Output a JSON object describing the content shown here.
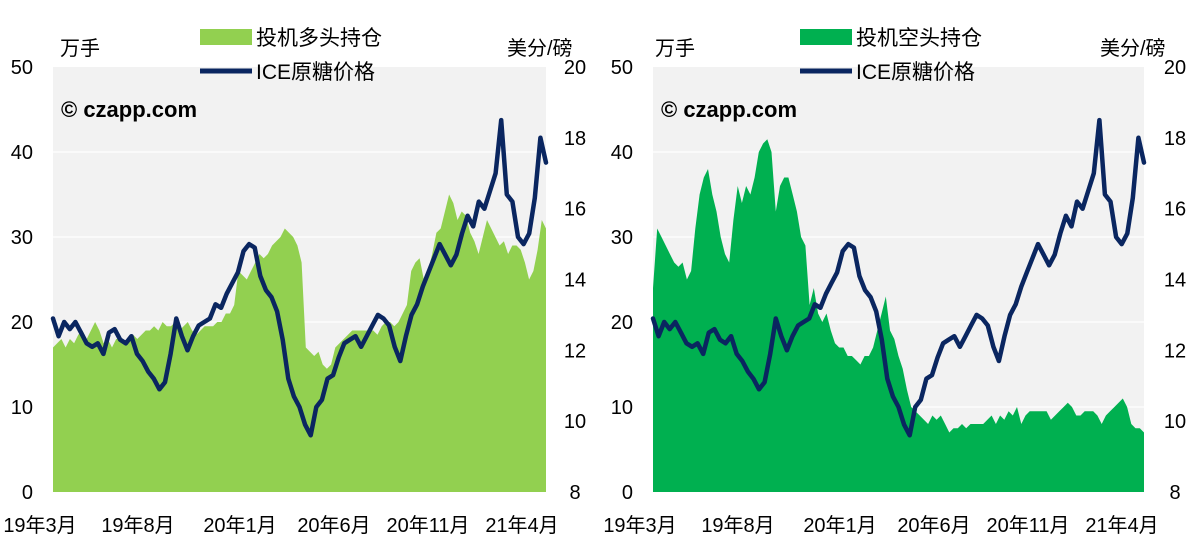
{
  "chart_data": [
    {
      "type": "area+line",
      "title": "",
      "watermark": "© czapp.com",
      "left_axis": {
        "unit_label": "万手",
        "range": [
          0,
          50
        ],
        "ticks": [
          "0",
          "10",
          "20",
          "30",
          "40",
          "50"
        ]
      },
      "right_axis": {
        "unit_label": "美分/磅",
        "range": [
          8,
          20
        ],
        "ticks": [
          "8",
          "10",
          "12",
          "14",
          "16",
          "18",
          "20"
        ]
      },
      "x_tick_labels": [
        "19年3月",
        "19年8月",
        "20年1月",
        "20年6月",
        "20年11月",
        "21年4月"
      ],
      "legend": [
        "投机多头持仓",
        "ICE原糖价格"
      ],
      "colors": {
        "area": "#92d050",
        "line": "#0a2660",
        "plot_bg": "#f2f2f2"
      },
      "series": [
        {
          "name": "投机多头持仓",
          "axis": "left",
          "values": [
            17,
            17.5,
            18,
            17,
            18,
            17.5,
            18.5,
            19,
            18,
            19,
            20,
            19,
            17.5,
            18,
            17,
            18,
            18,
            17.5,
            18,
            18.5,
            18,
            18.5,
            19,
            19,
            19.5,
            19,
            20,
            19.5,
            19.5,
            20,
            19,
            19.5,
            20,
            19,
            18.5,
            19,
            19.5,
            19.5,
            19.5,
            20,
            20,
            21,
            21,
            22,
            26,
            25.5,
            25,
            26,
            27,
            28,
            27.5,
            28,
            29,
            29.5,
            30,
            31,
            30.5,
            30,
            29,
            27,
            17,
            16.5,
            16,
            16.5,
            15,
            14.5,
            15,
            17,
            17.5,
            18,
            18.5,
            19,
            19,
            19,
            19,
            19,
            19,
            18.5,
            19.5,
            20,
            20,
            19.5,
            20,
            21,
            22,
            26,
            27,
            27.5,
            25,
            26,
            28,
            30.5,
            31,
            33,
            35,
            34,
            32,
            33,
            32.5,
            30.5,
            29.5,
            28,
            30,
            32,
            31,
            30,
            29,
            29.5,
            28,
            29,
            29,
            28.5,
            27,
            25,
            26,
            28.5,
            32,
            31
          ],
          "step_weeks": 1
        },
        {
          "name": "ICE原糖价格",
          "axis": "right",
          "values": [
            12.9,
            12.4,
            12.8,
            12.6,
            12.8,
            12.5,
            12.2,
            12.1,
            12.2,
            11.9,
            12.5,
            12.6,
            12.3,
            12.2,
            12.4,
            11.9,
            11.7,
            11.4,
            11.2,
            10.9,
            11.1,
            11.9,
            12.9,
            12.4,
            12.0,
            12.4,
            12.7,
            12.8,
            12.9,
            13.3,
            13.2,
            13.6,
            13.9,
            14.2,
            14.8,
            15.0,
            14.9,
            14.1,
            13.7,
            13.5,
            13.1,
            12.3,
            11.2,
            10.7,
            10.4,
            9.9,
            9.6,
            10.4,
            10.6,
            11.2,
            11.3,
            11.8,
            12.2,
            12.3,
            12.4,
            12.1,
            12.4,
            12.7,
            13.0,
            12.9,
            12.7,
            12.1,
            11.7,
            12.4,
            13.0,
            13.3,
            13.8,
            14.2,
            14.6,
            15.0,
            14.7,
            14.4,
            14.7,
            15.3,
            15.8,
            15.5,
            16.2,
            16.0,
            16.5,
            17.0,
            18.5,
            16.4,
            16.2,
            15.2,
            15.0,
            15.3,
            16.3,
            18.0,
            17.3
          ]
        }
      ]
    },
    {
      "type": "area+line",
      "title": "",
      "watermark": "© czapp.com",
      "left_axis": {
        "unit_label": "万手",
        "range": [
          0,
          50
        ],
        "ticks": [
          "0",
          "10",
          "20",
          "30",
          "40",
          "50"
        ]
      },
      "right_axis": {
        "unit_label": "美分/磅",
        "range": [
          8,
          20
        ],
        "ticks": [
          "8",
          "10",
          "12",
          "14",
          "16",
          "18",
          "20"
        ]
      },
      "x_tick_labels": [
        "19年3月",
        "19年8月",
        "20年1月",
        "20年6月",
        "20年11月",
        "21年4月"
      ],
      "legend": [
        "投机空头持仓",
        "ICE原糖价格"
      ],
      "colors": {
        "area": "#00b050",
        "line": "#0a2660",
        "plot_bg": "#f2f2f2"
      },
      "series": [
        {
          "name": "投机空头持仓",
          "axis": "left",
          "values": [
            24,
            31,
            30,
            29,
            28,
            27,
            26.5,
            27,
            25,
            26,
            31,
            35,
            37,
            38,
            35,
            33,
            30,
            28,
            27,
            32,
            36,
            34,
            36,
            35,
            37,
            40,
            41,
            41.5,
            40,
            33,
            36,
            37,
            37,
            35,
            33,
            30,
            29,
            22,
            24,
            21,
            20,
            21,
            19,
            17.5,
            17,
            17,
            16,
            16,
            15.5,
            15,
            16,
            16,
            17,
            19,
            21,
            23,
            19,
            18,
            16,
            14.5,
            12,
            10,
            9.5,
            9,
            8.5,
            8,
            9,
            8.5,
            9,
            8,
            7,
            7.5,
            7.5,
            8,
            7.5,
            8,
            8,
            8,
            8,
            8.5,
            9,
            8,
            9,
            8.5,
            9.5,
            9,
            10,
            8,
            9,
            9.5,
            9.5,
            9.5,
            9.5,
            9.5,
            8.5,
            9,
            9.5,
            10,
            10.5,
            10,
            9,
            9,
            9.5,
            9.5,
            9.5,
            9,
            8,
            9,
            9.5,
            10,
            10.5,
            11,
            10,
            8,
            7.5,
            7.5,
            7
          ],
          "step_weeks": 1
        },
        {
          "name": "ICE原糖价格",
          "axis": "right",
          "values": [
            12.9,
            12.4,
            12.8,
            12.6,
            12.8,
            12.5,
            12.2,
            12.1,
            12.2,
            11.9,
            12.5,
            12.6,
            12.3,
            12.2,
            12.4,
            11.9,
            11.7,
            11.4,
            11.2,
            10.9,
            11.1,
            11.9,
            12.9,
            12.4,
            12.0,
            12.4,
            12.7,
            12.8,
            12.9,
            13.3,
            13.2,
            13.6,
            13.9,
            14.2,
            14.8,
            15.0,
            14.9,
            14.1,
            13.7,
            13.5,
            13.1,
            12.3,
            11.2,
            10.7,
            10.4,
            9.9,
            9.6,
            10.4,
            10.6,
            11.2,
            11.3,
            11.8,
            12.2,
            12.3,
            12.4,
            12.1,
            12.4,
            12.7,
            13.0,
            12.9,
            12.7,
            12.1,
            11.7,
            12.4,
            13.0,
            13.3,
            13.8,
            14.2,
            14.6,
            15.0,
            14.7,
            14.4,
            14.7,
            15.3,
            15.8,
            15.5,
            16.2,
            16.0,
            16.5,
            17.0,
            18.5,
            16.4,
            16.2,
            15.2,
            15.0,
            15.3,
            16.3,
            18.0,
            17.3
          ]
        }
      ]
    }
  ]
}
